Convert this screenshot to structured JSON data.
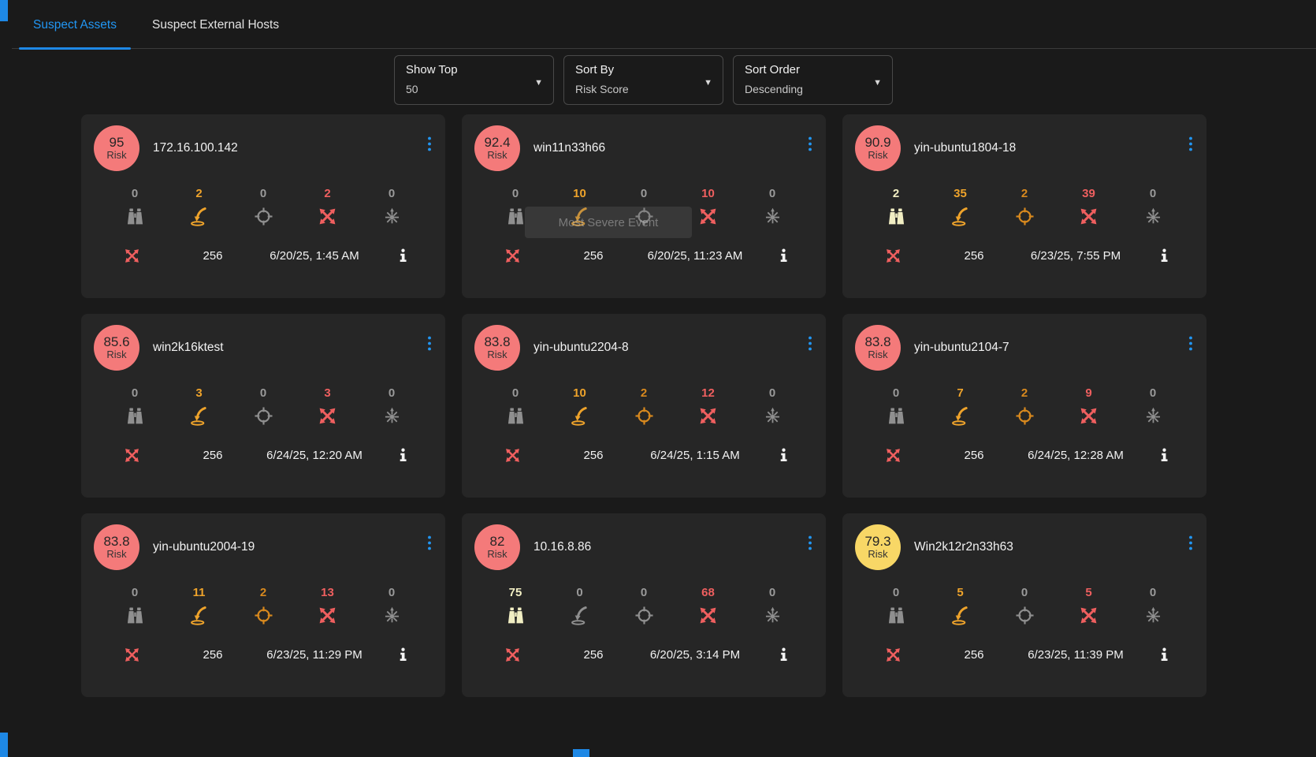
{
  "tabs": [
    {
      "label": "Suspect Assets",
      "active": true
    },
    {
      "label": "Suspect External Hosts",
      "active": false
    }
  ],
  "filters": [
    {
      "label": "Show Top",
      "value": "50"
    },
    {
      "label": "Sort By",
      "value": "Risk Score"
    },
    {
      "label": "Sort Order",
      "value": "Descending"
    }
  ],
  "labels": {
    "risk": "Risk"
  },
  "icons": {
    "caret": "▼",
    "stages": [
      "binoculars-icon",
      "landing-arrow-icon",
      "crosshair-icon",
      "crossed-arrows-icon",
      "radiate-icon"
    ],
    "kebab": "kebab-menu-icon",
    "info": "info-icon"
  },
  "colors": {
    "accent_blue": "#2196f3",
    "badge_red": "#f47a7a",
    "badge_yellow": "#f8d766",
    "count_gray": "#9a9a9a",
    "count_cream": "#f1eec3",
    "count_amber": "#eea32b",
    "count_orange": "#d8891e",
    "count_red": "#ef5f5f",
    "card_bg": "#262626",
    "page_bg": "#1a1a1a"
  },
  "tooltip": {
    "text": "Most Severe Event",
    "card_index": 1
  },
  "cards": [
    {
      "risk": "95",
      "badge": "red",
      "name": "172.16.100.142",
      "counts": [
        "0",
        "2",
        "0",
        "2",
        "0"
      ],
      "levels": [
        "gray",
        "amber",
        "gray",
        "red",
        "gray"
      ],
      "events": "256",
      "last_event": "6/20/25, 1:45 AM"
    },
    {
      "risk": "92.4",
      "badge": "red",
      "name": "win11n33h66",
      "counts": [
        "0",
        "10",
        "0",
        "10",
        "0"
      ],
      "levels": [
        "gray",
        "amber",
        "gray",
        "red",
        "gray"
      ],
      "events": "256",
      "last_event": "6/20/25, 11:23 AM"
    },
    {
      "risk": "90.9",
      "badge": "red",
      "name": "yin-ubuntu1804-18",
      "counts": [
        "2",
        "35",
        "2",
        "39",
        "0"
      ],
      "levels": [
        "cream",
        "amber",
        "orange",
        "red",
        "gray"
      ],
      "events": "256",
      "last_event": "6/23/25, 7:55 PM"
    },
    {
      "risk": "85.6",
      "badge": "red",
      "name": "win2k16ktest",
      "counts": [
        "0",
        "3",
        "0",
        "3",
        "0"
      ],
      "levels": [
        "gray",
        "amber",
        "gray",
        "red",
        "gray"
      ],
      "events": "256",
      "last_event": "6/24/25, 12:20 AM"
    },
    {
      "risk": "83.8",
      "badge": "red",
      "name": "yin-ubuntu2204-8",
      "counts": [
        "0",
        "10",
        "2",
        "12",
        "0"
      ],
      "levels": [
        "gray",
        "amber",
        "orange",
        "red",
        "gray"
      ],
      "events": "256",
      "last_event": "6/24/25, 1:15 AM"
    },
    {
      "risk": "83.8",
      "badge": "red",
      "name": "yin-ubuntu2104-7",
      "counts": [
        "0",
        "7",
        "2",
        "9",
        "0"
      ],
      "levels": [
        "gray",
        "amber",
        "orange",
        "red",
        "gray"
      ],
      "events": "256",
      "last_event": "6/24/25, 12:28 AM"
    },
    {
      "risk": "83.8",
      "badge": "red",
      "name": "yin-ubuntu2004-19",
      "counts": [
        "0",
        "11",
        "2",
        "13",
        "0"
      ],
      "levels": [
        "gray",
        "amber",
        "orange",
        "red",
        "gray"
      ],
      "events": "256",
      "last_event": "6/23/25, 11:29 PM"
    },
    {
      "risk": "82",
      "badge": "red",
      "name": "10.16.8.86",
      "counts": [
        "75",
        "0",
        "0",
        "68",
        "0"
      ],
      "levels": [
        "cream",
        "gray",
        "gray",
        "red",
        "gray"
      ],
      "events": "256",
      "last_event": "6/20/25, 3:14 PM"
    },
    {
      "risk": "79.3",
      "badge": "yellow",
      "name": "Win2k12r2n33h63",
      "counts": [
        "0",
        "5",
        "0",
        "5",
        "0"
      ],
      "levels": [
        "gray",
        "amber",
        "gray",
        "red",
        "gray"
      ],
      "events": "256",
      "last_event": "6/23/25, 11:39 PM"
    }
  ]
}
